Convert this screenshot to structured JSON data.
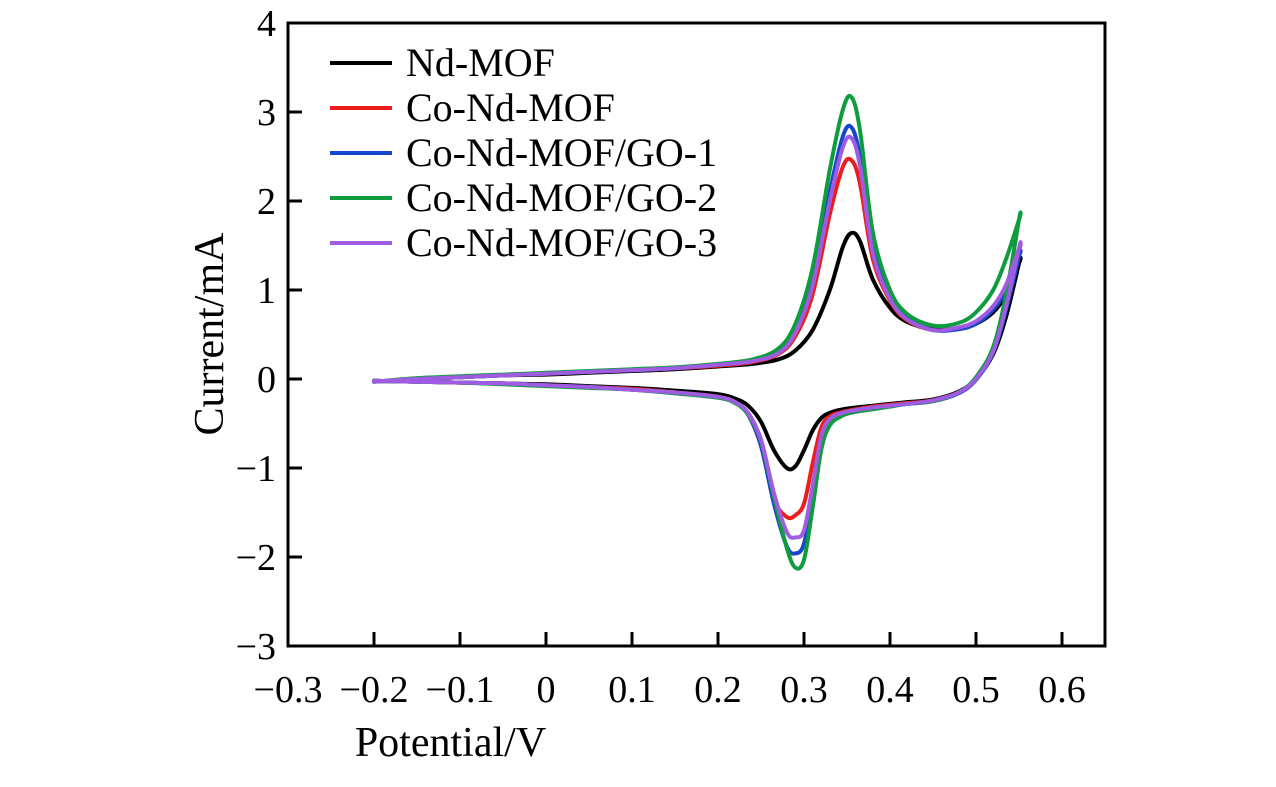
{
  "page": {
    "background": "#ffffff"
  },
  "chart_data": {
    "type": "line",
    "subtype": "cyclic-voltammogram",
    "xlabel": "Potential/V",
    "ylabel": "Current/mA",
    "xlim": [
      -0.3,
      0.65
    ],
    "ylim": [
      -3,
      4
    ],
    "x_ticks": [
      -0.3,
      -0.2,
      -0.1,
      0,
      0.1,
      0.2,
      0.3,
      0.4,
      0.5,
      0.6
    ],
    "x_tick_labels": [
      "−0.3",
      "−0.2",
      "−0.1",
      "0",
      "0.1",
      "0.2",
      "0.3",
      "0.4",
      "0.5",
      "0.6"
    ],
    "y_ticks": [
      -3,
      -2,
      -1,
      0,
      1,
      2,
      3,
      4
    ],
    "y_tick_labels": [
      "−3",
      "−2",
      "−1",
      "0",
      "1",
      "2",
      "3",
      "4"
    ],
    "grid": false,
    "legend_position": "upper-left",
    "axis_color": "#000000",
    "scan_range_V": [
      -0.2,
      0.55
    ],
    "series": [
      {
        "name": "Nd-MOF",
        "color": "#000000",
        "anodic_peak": {
          "V": 0.355,
          "I": 1.64
        },
        "cathodic_peak": {
          "V": 0.285,
          "I": -1.0
        },
        "forward_V": [
          -0.2,
          -0.15,
          -0.1,
          -0.05,
          0.0,
          0.05,
          0.1,
          0.15,
          0.2,
          0.24,
          0.27,
          0.29,
          0.31,
          0.33,
          0.345,
          0.355,
          0.365,
          0.38,
          0.4,
          0.42,
          0.45,
          0.48,
          0.5,
          0.52,
          0.535,
          0.55
        ],
        "forward_I": [
          -0.03,
          0.0,
          0.02,
          0.04,
          0.05,
          0.07,
          0.09,
          0.11,
          0.14,
          0.17,
          0.22,
          0.32,
          0.55,
          1.0,
          1.48,
          1.64,
          1.55,
          1.12,
          0.8,
          0.64,
          0.56,
          0.57,
          0.62,
          0.75,
          0.95,
          1.3
        ],
        "reverse_V": [
          0.55,
          0.535,
          0.52,
          0.5,
          0.48,
          0.45,
          0.42,
          0.4,
          0.38,
          0.36,
          0.345,
          0.33,
          0.32,
          0.31,
          0.3,
          0.29,
          0.28,
          0.265,
          0.25,
          0.235,
          0.22,
          0.2,
          0.15,
          0.1,
          0.05,
          0.0,
          -0.05,
          -0.1,
          -0.15,
          -0.2
        ],
        "reverse_I": [
          1.3,
          0.7,
          0.28,
          0.0,
          -0.14,
          -0.23,
          -0.26,
          -0.28,
          -0.3,
          -0.32,
          -0.34,
          -0.38,
          -0.44,
          -0.58,
          -0.8,
          -0.98,
          -1.0,
          -0.8,
          -0.48,
          -0.3,
          -0.22,
          -0.17,
          -0.13,
          -0.1,
          -0.08,
          -0.06,
          -0.05,
          -0.04,
          -0.03,
          -0.02
        ]
      },
      {
        "name": "Co-Nd-MOF",
        "color": "#ee1d1d",
        "anodic_peak": {
          "V": 0.353,
          "I": 2.46
        },
        "cathodic_peak": {
          "V": 0.285,
          "I": -1.55
        },
        "forward_V": [
          -0.2,
          -0.15,
          -0.1,
          -0.05,
          0.0,
          0.05,
          0.1,
          0.15,
          0.2,
          0.24,
          0.27,
          0.29,
          0.31,
          0.33,
          0.345,
          0.355,
          0.365,
          0.38,
          0.4,
          0.42,
          0.45,
          0.48,
          0.5,
          0.52,
          0.535,
          0.55
        ],
        "forward_I": [
          -0.03,
          0.0,
          0.02,
          0.04,
          0.06,
          0.08,
          0.1,
          0.12,
          0.15,
          0.19,
          0.28,
          0.48,
          0.95,
          1.85,
          2.38,
          2.46,
          2.2,
          1.35,
          0.88,
          0.66,
          0.55,
          0.57,
          0.63,
          0.8,
          1.02,
          1.45
        ],
        "reverse_V": [
          0.55,
          0.535,
          0.52,
          0.5,
          0.48,
          0.45,
          0.42,
          0.4,
          0.38,
          0.36,
          0.345,
          0.33,
          0.32,
          0.31,
          0.3,
          0.29,
          0.28,
          0.265,
          0.25,
          0.235,
          0.22,
          0.2,
          0.15,
          0.1,
          0.05,
          0.0,
          -0.05,
          -0.1,
          -0.15,
          -0.2
        ],
        "reverse_I": [
          1.45,
          0.8,
          0.3,
          0.0,
          -0.15,
          -0.24,
          -0.27,
          -0.29,
          -0.31,
          -0.34,
          -0.37,
          -0.42,
          -0.55,
          -0.95,
          -1.4,
          -1.53,
          -1.55,
          -1.35,
          -0.75,
          -0.4,
          -0.26,
          -0.2,
          -0.15,
          -0.11,
          -0.09,
          -0.07,
          -0.05,
          -0.04,
          -0.03,
          -0.02
        ]
      },
      {
        "name": "Co-Nd-MOF/GO-1",
        "color": "#1747cf",
        "anodic_peak": {
          "V": 0.353,
          "I": 2.83
        },
        "cathodic_peak": {
          "V": 0.29,
          "I": -1.96
        },
        "forward_V": [
          -0.2,
          -0.15,
          -0.1,
          -0.05,
          0.0,
          0.05,
          0.1,
          0.15,
          0.2,
          0.24,
          0.27,
          0.29,
          0.31,
          0.33,
          0.345,
          0.355,
          0.365,
          0.38,
          0.4,
          0.42,
          0.45,
          0.48,
          0.5,
          0.52,
          0.535,
          0.55
        ],
        "forward_I": [
          -0.03,
          0.0,
          0.02,
          0.04,
          0.06,
          0.08,
          0.1,
          0.12,
          0.16,
          0.2,
          0.3,
          0.55,
          1.1,
          2.1,
          2.72,
          2.83,
          2.5,
          1.48,
          0.92,
          0.68,
          0.55,
          0.56,
          0.62,
          0.78,
          1.0,
          1.38
        ],
        "reverse_V": [
          0.55,
          0.535,
          0.52,
          0.5,
          0.48,
          0.45,
          0.42,
          0.4,
          0.38,
          0.36,
          0.345,
          0.33,
          0.32,
          0.31,
          0.3,
          0.29,
          0.28,
          0.265,
          0.25,
          0.235,
          0.22,
          0.2,
          0.15,
          0.1,
          0.05,
          0.0,
          -0.05,
          -0.1,
          -0.15,
          -0.2
        ],
        "reverse_I": [
          1.38,
          0.78,
          0.3,
          -0.01,
          -0.16,
          -0.25,
          -0.28,
          -0.3,
          -0.33,
          -0.36,
          -0.39,
          -0.47,
          -0.7,
          -1.3,
          -1.85,
          -1.96,
          -1.88,
          -1.4,
          -0.75,
          -0.4,
          -0.27,
          -0.21,
          -0.16,
          -0.12,
          -0.09,
          -0.07,
          -0.05,
          -0.04,
          -0.03,
          -0.02
        ]
      },
      {
        "name": "Co-Nd-MOF/GO-2",
        "color": "#0f9c3f",
        "anodic_peak": {
          "V": 0.353,
          "I": 3.17
        },
        "cathodic_peak": {
          "V": 0.295,
          "I": -2.12
        },
        "forward_V": [
          -0.2,
          -0.15,
          -0.1,
          -0.05,
          0.0,
          0.05,
          0.1,
          0.15,
          0.2,
          0.24,
          0.27,
          0.29,
          0.31,
          0.33,
          0.345,
          0.355,
          0.365,
          0.38,
          0.4,
          0.42,
          0.45,
          0.48,
          0.5,
          0.52,
          0.535,
          0.55
        ],
        "forward_I": [
          -0.03,
          0.01,
          0.03,
          0.05,
          0.07,
          0.09,
          0.11,
          0.13,
          0.17,
          0.22,
          0.34,
          0.62,
          1.25,
          2.35,
          3.02,
          3.17,
          2.8,
          1.65,
          1.0,
          0.73,
          0.6,
          0.63,
          0.75,
          1.0,
          1.35,
          1.79
        ],
        "reverse_V": [
          0.55,
          0.535,
          0.52,
          0.5,
          0.48,
          0.45,
          0.42,
          0.4,
          0.38,
          0.36,
          0.345,
          0.33,
          0.32,
          0.31,
          0.3,
          0.29,
          0.28,
          0.265,
          0.25,
          0.235,
          0.22,
          0.2,
          0.15,
          0.1,
          0.05,
          0.0,
          -0.05,
          -0.1,
          -0.15,
          -0.2
        ],
        "reverse_I": [
          1.79,
          0.95,
          0.36,
          0.02,
          -0.15,
          -0.25,
          -0.28,
          -0.31,
          -0.34,
          -0.37,
          -0.41,
          -0.52,
          -0.8,
          -1.45,
          -2.03,
          -2.12,
          -1.9,
          -1.32,
          -0.7,
          -0.4,
          -0.27,
          -0.21,
          -0.16,
          -0.12,
          -0.1,
          -0.08,
          -0.06,
          -0.04,
          -0.03,
          -0.02
        ]
      },
      {
        "name": "Co-Nd-MOF/GO-3",
        "color": "#a05ce0",
        "anodic_peak": {
          "V": 0.353,
          "I": 2.71
        },
        "cathodic_peak": {
          "V": 0.29,
          "I": -1.78
        },
        "forward_V": [
          -0.2,
          -0.15,
          -0.1,
          -0.05,
          0.0,
          0.05,
          0.1,
          0.15,
          0.2,
          0.24,
          0.27,
          0.29,
          0.31,
          0.33,
          0.345,
          0.355,
          0.365,
          0.38,
          0.4,
          0.42,
          0.45,
          0.48,
          0.5,
          0.52,
          0.535,
          0.55
        ],
        "forward_I": [
          -0.03,
          0.0,
          0.02,
          0.04,
          0.06,
          0.08,
          0.1,
          0.12,
          0.16,
          0.2,
          0.29,
          0.52,
          1.05,
          2.0,
          2.6,
          2.71,
          2.4,
          1.42,
          0.9,
          0.67,
          0.55,
          0.58,
          0.65,
          0.82,
          1.06,
          1.47
        ],
        "reverse_V": [
          0.55,
          0.535,
          0.52,
          0.5,
          0.48,
          0.45,
          0.42,
          0.4,
          0.38,
          0.36,
          0.345,
          0.33,
          0.32,
          0.31,
          0.3,
          0.29,
          0.28,
          0.265,
          0.25,
          0.235,
          0.22,
          0.2,
          0.15,
          0.1,
          0.05,
          0.0,
          -0.05,
          -0.1,
          -0.15,
          -0.2
        ],
        "reverse_I": [
          1.47,
          0.82,
          0.31,
          0.0,
          -0.15,
          -0.24,
          -0.28,
          -0.3,
          -0.32,
          -0.35,
          -0.38,
          -0.45,
          -0.65,
          -1.2,
          -1.7,
          -1.78,
          -1.72,
          -1.28,
          -0.68,
          -0.38,
          -0.26,
          -0.2,
          -0.15,
          -0.12,
          -0.09,
          -0.07,
          -0.05,
          -0.04,
          -0.03,
          -0.02
        ]
      }
    ]
  }
}
